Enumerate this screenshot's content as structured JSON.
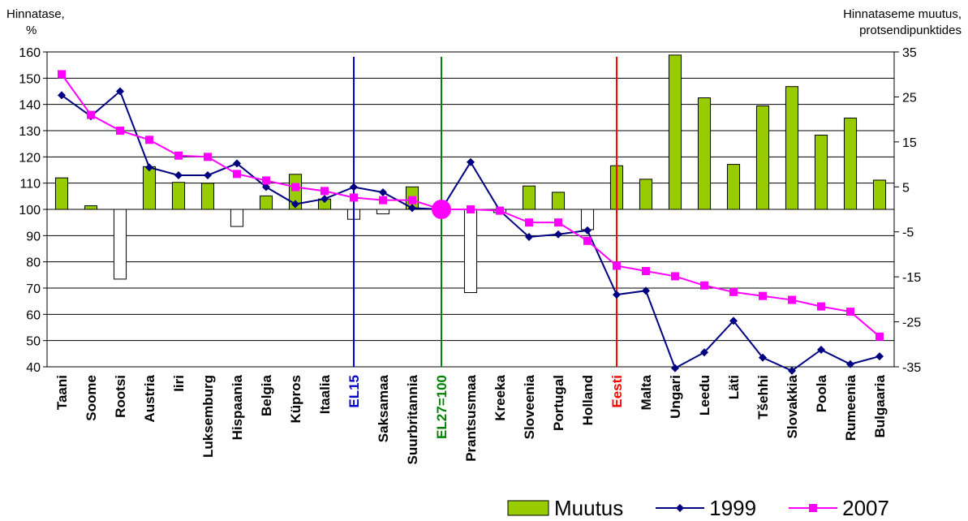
{
  "chart_data": {
    "type": "bar+line",
    "left_axis_title_line1": "Hinnatase,",
    "left_axis_title_line2": "%",
    "right_axis_title_line1": "Hinnataseme muutus,",
    "right_axis_title_line2": "protsendipunktides",
    "ylim_left": [
      40,
      160
    ],
    "yticks_left": [
      "40",
      "50",
      "60",
      "70",
      "80",
      "90",
      "100",
      "110",
      "120",
      "130",
      "140",
      "150",
      "160"
    ],
    "ylim_right": [
      -35,
      35
    ],
    "yticks_right": [
      "-35",
      "-25",
      "-15",
      "-5",
      "5",
      "15",
      "25",
      "35"
    ],
    "categories": [
      "Taani",
      "Soome",
      "Rootsi",
      "Austria",
      "Iiri",
      "Luksemburg",
      "Hispaania",
      "Belgia",
      "Küpros",
      "Itaalia",
      "EL15",
      "Saksamaa",
      "Suurbritannia",
      "EL27=100",
      "Prantsusmaa",
      "Kreeka",
      "Sloveenia",
      "Portugal",
      "Holland",
      "Eesti",
      "Malta",
      "Ungari",
      "Leedu",
      "Läti",
      "Tšehhi",
      "Slovakkia",
      "Poola",
      "Rumeenia",
      "Bulgaaria"
    ],
    "category_colors": {
      "EL15": "#0000cc",
      "EL27=100": "#008000",
      "Eesti": "#ff0000"
    },
    "series": [
      {
        "name": "Muutus",
        "kind": "bar",
        "axis": "right",
        "color": "#99cc00",
        "values": [
          7,
          0.8,
          -15.5,
          9.5,
          6,
          5.8,
          -3.8,
          3,
          7.8,
          2.3,
          -2.2,
          -1,
          5,
          null,
          -18.5,
          -0.7,
          5.2,
          3.8,
          -4.5,
          9.7,
          6.7,
          34.3,
          24.8,
          10,
          23,
          27.3,
          16.5,
          20.3,
          6.5
        ]
      },
      {
        "name": "1999",
        "kind": "line",
        "axis": "left",
        "color": "#000080",
        "values": [
          143.5,
          135.5,
          145,
          116,
          113,
          113,
          117.5,
          108.5,
          102,
          104,
          108.5,
          106.5,
          100.5,
          100,
          118,
          99.5,
          89.5,
          90.5,
          92,
          67.5,
          69,
          39.5,
          45.5,
          57.5,
          43.5,
          38.5,
          46.5,
          41,
          44
        ]
      },
      {
        "name": "2007",
        "kind": "line",
        "axis": "left",
        "color": "#ff00ff",
        "values": [
          151.5,
          136,
          130,
          126.5,
          120.5,
          120,
          113.5,
          111,
          108.5,
          107,
          104.5,
          103.5,
          103.5,
          100,
          100,
          99.5,
          95,
          95,
          88,
          78.5,
          76.5,
          74.5,
          71,
          68.5,
          67,
          65.5,
          63,
          61,
          51.5
        ]
      }
    ],
    "vlines": [
      {
        "category": "EL15",
        "color": "#0000cc"
      },
      {
        "category": "EL27=100",
        "color": "#008000"
      },
      {
        "category": "Eesti",
        "color": "#ff0000"
      }
    ],
    "marker": {
      "category": "EL27=100",
      "value": 100,
      "color": "#ff00ff"
    },
    "grid": true,
    "legend_placement": "bottom-right"
  }
}
